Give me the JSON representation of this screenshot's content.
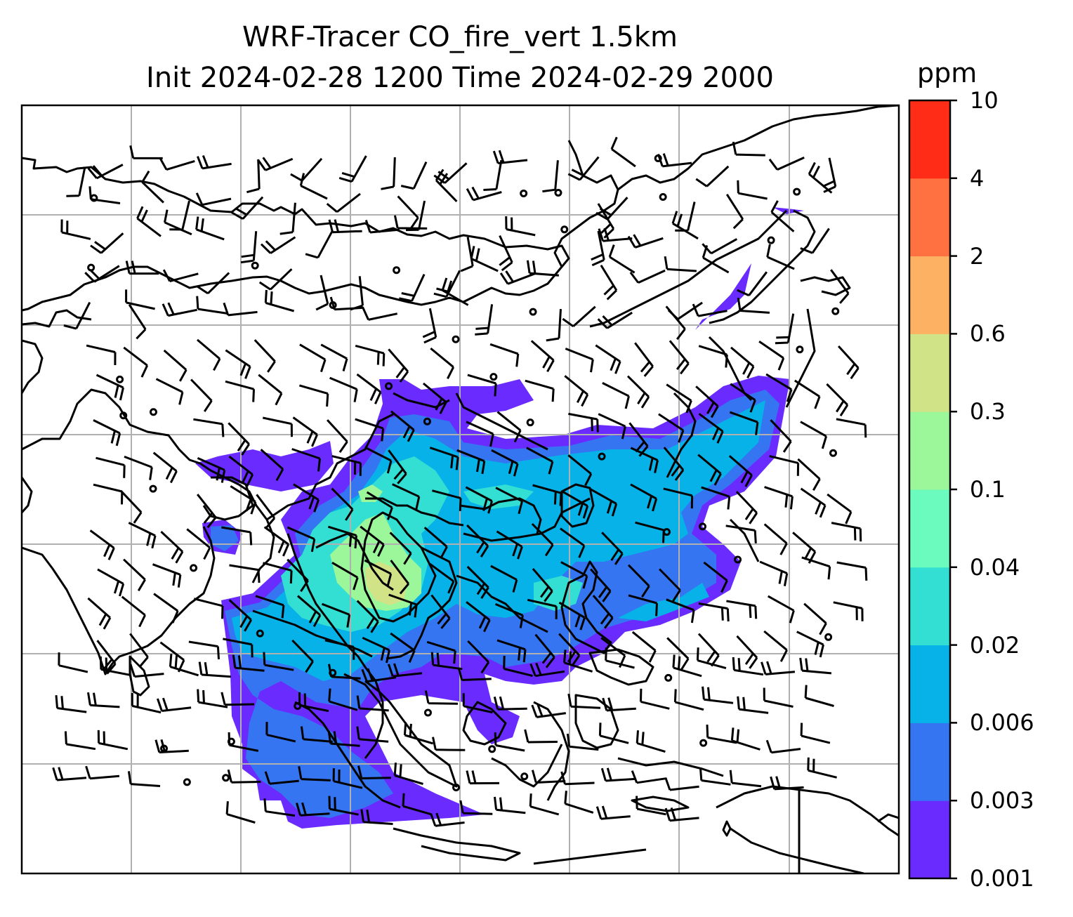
{
  "title": {
    "line1": "WRF-Tracer CO_fire_vert 1.5km",
    "line2": "Init 2024-02-28 1200 Time 2024-02-29 2000"
  },
  "colorbar": {
    "unit": "ppm",
    "levels": [
      "0.001",
      "0.003",
      "0.006",
      "0.02",
      "0.04",
      "0.1",
      "0.3",
      "0.6",
      "2",
      "4",
      "10"
    ],
    "colors": [
      "#6a2bff",
      "#3575f2",
      "#07b2e8",
      "#33dfd2",
      "#6bfbbf",
      "#9cf69a",
      "#d0e387",
      "#fdb263",
      "#ff7140",
      "#ff2d17"
    ]
  },
  "map": {
    "gridlines": true,
    "variable": "CO_fire_vert",
    "height": "1.5km",
    "overlays": [
      "coastlines",
      "country-borders",
      "wind-barbs",
      "tracer-concentration-fill"
    ],
    "plume_colors": {
      "light": "#6a2bff",
      "low": "#3575f2",
      "mid": "#07b2e8",
      "high": "#33dfd2",
      "peak": "#9cf69a",
      "max": "#d0e387"
    }
  }
}
